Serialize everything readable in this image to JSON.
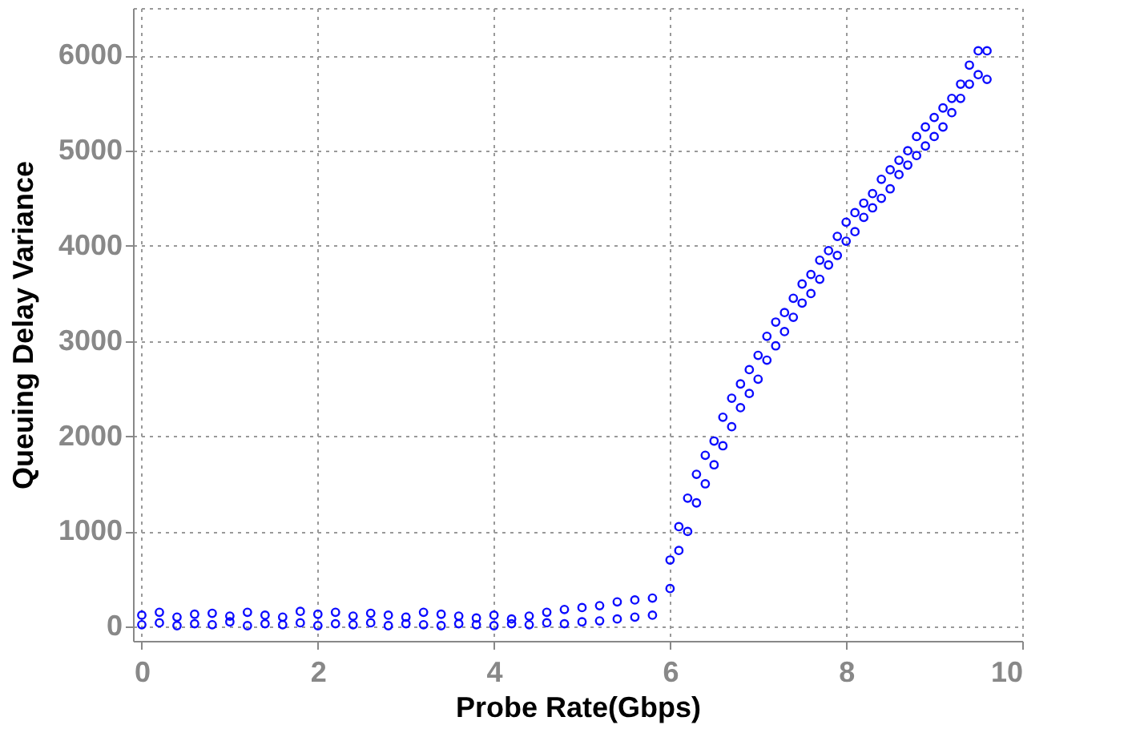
{
  "chart_data": {
    "type": "scatter",
    "xlabel": "Probe Rate(Gbps)",
    "ylabel": "Queuing Delay Variance",
    "x": [
      0.0,
      0.0,
      0.2,
      0.2,
      0.4,
      0.4,
      0.6,
      0.6,
      0.8,
      0.8,
      1.0,
      1.0,
      1.2,
      1.2,
      1.4,
      1.4,
      1.6,
      1.6,
      1.8,
      1.8,
      2.0,
      2.0,
      2.2,
      2.2,
      2.4,
      2.4,
      2.6,
      2.6,
      2.8,
      2.8,
      3.0,
      3.0,
      3.2,
      3.2,
      3.4,
      3.4,
      3.6,
      3.6,
      3.8,
      3.8,
      4.0,
      4.0,
      4.2,
      4.2,
      4.4,
      4.4,
      4.6,
      4.6,
      4.8,
      4.8,
      5.0,
      5.0,
      5.2,
      5.2,
      5.4,
      5.4,
      5.6,
      5.6,
      5.8,
      5.8,
      6.0,
      6.0,
      6.1,
      6.1,
      6.2,
      6.2,
      6.3,
      6.3,
      6.4,
      6.4,
      6.5,
      6.5,
      6.6,
      6.6,
      6.7,
      6.7,
      6.8,
      6.8,
      6.9,
      6.9,
      7.0,
      7.0,
      7.1,
      7.1,
      7.2,
      7.2,
      7.3,
      7.3,
      7.4,
      7.4,
      7.5,
      7.5,
      7.6,
      7.6,
      7.7,
      7.7,
      7.8,
      7.8,
      7.9,
      7.9,
      8.0,
      8.0,
      8.1,
      8.1,
      8.2,
      8.2,
      8.3,
      8.3,
      8.4,
      8.4,
      8.5,
      8.5,
      8.6,
      8.6,
      8.7,
      8.7,
      8.8,
      8.8,
      8.9,
      8.9,
      9.0,
      9.0,
      9.1,
      9.1,
      9.2,
      9.2,
      9.3,
      9.3,
      9.4,
      9.4,
      9.5,
      9.5,
      9.6,
      9.6
    ],
    "series": [
      {
        "color": "#0000ff",
        "values": [
          20,
          120,
          40,
          150,
          10,
          100,
          30,
          130,
          20,
          140,
          50,
          110,
          10,
          150,
          30,
          120,
          20,
          100,
          40,
          160,
          10,
          130,
          30,
          150,
          20,
          110,
          40,
          140,
          10,
          120,
          30,
          100,
          20,
          150,
          10,
          130,
          30,
          110,
          20,
          90,
          10,
          120,
          30,
          80,
          20,
          110,
          40,
          150,
          30,
          180,
          50,
          200,
          60,
          220,
          80,
          260,
          100,
          280,
          120,
          300,
          400,
          700,
          800,
          1050,
          1000,
          1350,
          1300,
          1600,
          1500,
          1800,
          1700,
          1950,
          1900,
          2200,
          2100,
          2400,
          2300,
          2550,
          2450,
          2700,
          2600,
          2850,
          2800,
          3050,
          2950,
          3200,
          3100,
          3300,
          3250,
          3450,
          3400,
          3600,
          3500,
          3700,
          3650,
          3850,
          3800,
          3950,
          3900,
          4100,
          4050,
          4250,
          4150,
          4350,
          4300,
          4450,
          4400,
          4550,
          4500,
          4700,
          4600,
          4800,
          4750,
          4900,
          4850,
          5000,
          4950,
          5150,
          5050,
          5250,
          5150,
          5350,
          5250,
          5450,
          5400,
          5550,
          5550,
          5700,
          5700,
          5900,
          5800,
          6050,
          5750,
          6050
        ]
      }
    ],
    "xlim": [
      -0.1,
      10
    ],
    "xticks": [
      0,
      2,
      4,
      6,
      8,
      10
    ],
    "ylim": [
      -150,
      6500
    ],
    "yticks": [
      0,
      1000,
      2000,
      3000,
      4000,
      5000,
      6000
    ],
    "grid": true,
    "marker": "circle",
    "legend": false
  }
}
